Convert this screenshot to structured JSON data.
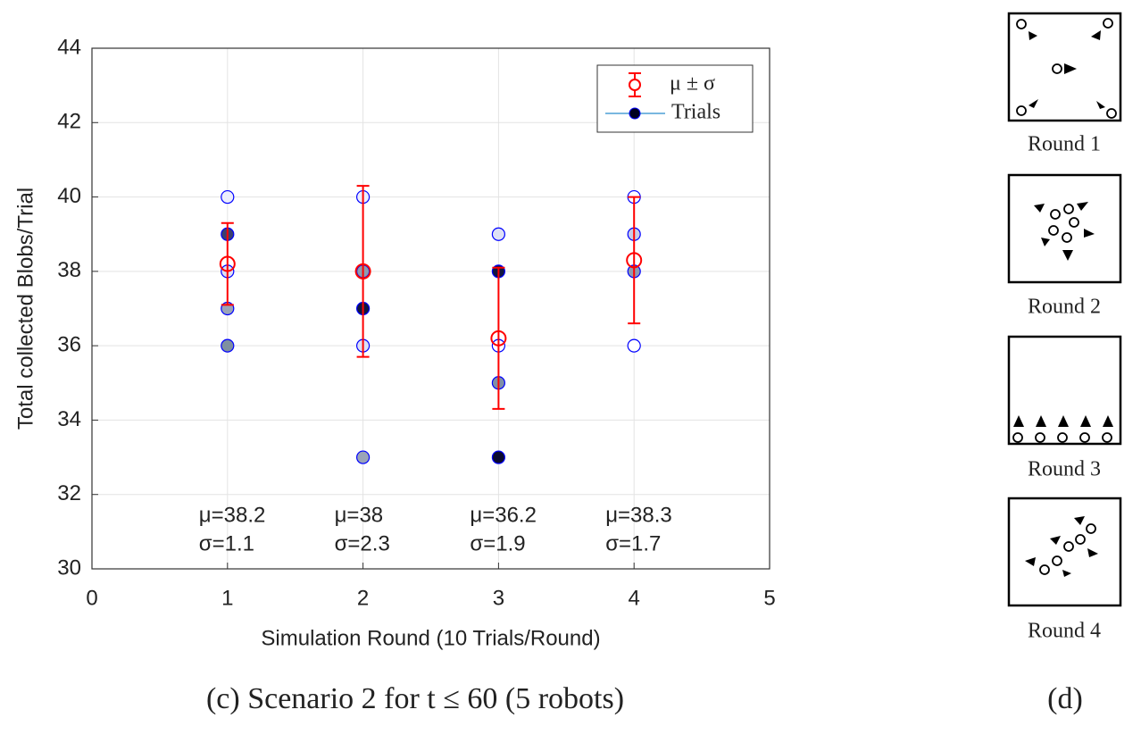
{
  "chart_data": {
    "type": "errorbar",
    "xlabel": "Simulation Round (10 Trials/Round)",
    "ylabel": "Total collected Blobs/Trial",
    "xlim": [
      0,
      5
    ],
    "ylim": [
      30,
      44
    ],
    "xticks": [
      0,
      1,
      2,
      3,
      4,
      5
    ],
    "yticks": [
      30,
      32,
      34,
      36,
      38,
      40,
      42,
      44
    ],
    "grid": true,
    "legend": "upper right",
    "series": [
      {
        "name": "μ ± σ",
        "color": "#ff0000",
        "x": [
          1,
          2,
          3,
          4
        ],
        "values": [
          38.2,
          38,
          36.2,
          38.3
        ],
        "errors": [
          1.1,
          2.3,
          1.9,
          1.7
        ]
      },
      {
        "name": "Trials",
        "color": "#0000ff",
        "line_color": "#4d9fd6",
        "x": [
          1,
          1,
          1,
          1,
          1,
          2,
          2,
          2,
          2,
          2,
          3,
          3,
          3,
          3,
          3,
          4,
          4,
          4,
          4
        ],
        "values": [
          40,
          39,
          38,
          37,
          36,
          40,
          38,
          37,
          36,
          33,
          39,
          38,
          36,
          35,
          33,
          40,
          39,
          38,
          36
        ],
        "fills": [
          "#eceefc",
          "#3a4070",
          "#dde0f5",
          "#9aa4b8",
          "#7f90a0",
          "#eceefc",
          "#8e9cb0",
          "#101640",
          "#dde0f5",
          "#9aa4b8",
          "#dde0f5",
          "#101640",
          "#ffffff",
          "#7f8fa8",
          "#0a0a30",
          "#ffffff",
          "#c8cce8",
          "#8e9cb0",
          "#ffffff"
        ]
      }
    ],
    "annotations": [
      [
        "μ=38.2",
        "σ=1.1"
      ],
      [
        "μ=38",
        "σ=2.3"
      ],
      [
        "μ=36.2",
        "σ=1.9"
      ],
      [
        "μ=38.3",
        "σ=1.7"
      ]
    ]
  },
  "captions": {
    "chart": "(c) Scenario 2 for t ≤ 60 (5 robots)",
    "diagram": "(d)"
  },
  "diagram": {
    "rounds": [
      "Round 1",
      "Round 2",
      "Round 3",
      "Round 4"
    ]
  }
}
